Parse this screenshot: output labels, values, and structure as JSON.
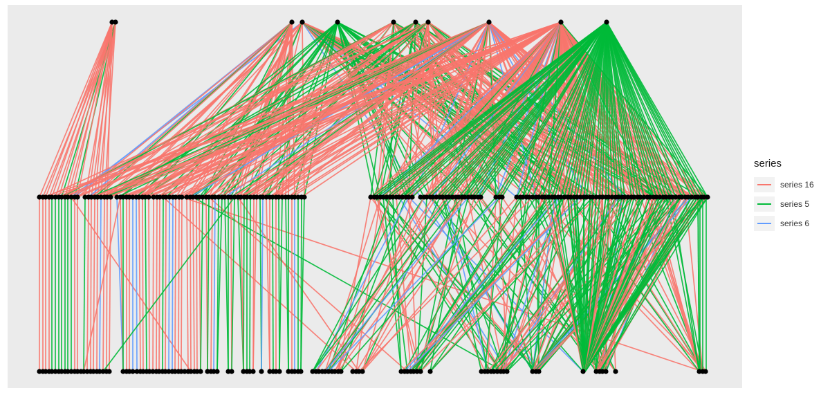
{
  "legend": {
    "title": "series",
    "items": [
      {
        "label": "series 16",
        "color": "#F8766D"
      },
      {
        "label": "series 5",
        "color": "#00BA38"
      },
      {
        "label": "series 6",
        "color": "#619CFF"
      }
    ]
  },
  "chart_data": {
    "type": "layered-network",
    "layers": 3,
    "node_color": "#000000",
    "edge_series": [
      "series 16",
      "series 5",
      "series 6"
    ],
    "series_colors": {
      "series 16": "#F8766D",
      "series 5": "#00BA38",
      "series 6": "#619CFF"
    }
  }
}
